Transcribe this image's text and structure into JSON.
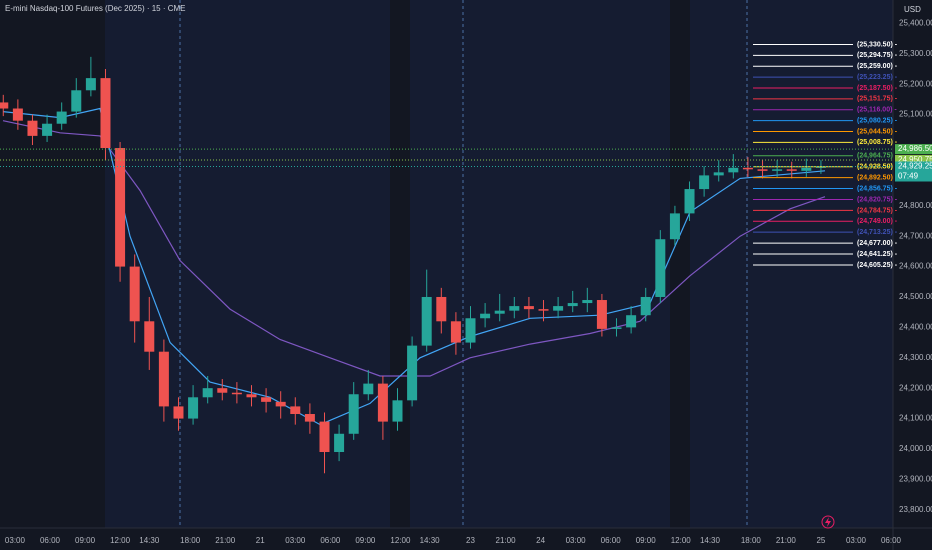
{
  "chart_data": {
    "type": "candlestick",
    "title": "E-mini Nasdaq-100 Futures (Dec 2025) · 15 · CME",
    "currency": "USD",
    "up_color": "#26a69a",
    "down_color": "#ef5350",
    "xlim": [
      1.72,
      78.17
    ],
    "ylim": [
      23740,
      25477
    ],
    "x": [
      2,
      3.25,
      4.5,
      5.75,
      7,
      8.25,
      9.5,
      10.75,
      12,
      13.25,
      14.5,
      15.75,
      17,
      18.25,
      19.5,
      20.75,
      22,
      23.25,
      24.5,
      25.75,
      27,
      28.25,
      29.5,
      30.75,
      32,
      33.25,
      34.5,
      35.75,
      37,
      38.25,
      39.5,
      40.75,
      42,
      43.25,
      44.5,
      45.75,
      47,
      48.25,
      49.5,
      50.75,
      52,
      53.25,
      54.5,
      55.75,
      57,
      58.25,
      59.5,
      60.75,
      62,
      63.25,
      64.5,
      65.75,
      67,
      68.25,
      69.5,
      70.75,
      72
    ],
    "open": [
      25140,
      25120,
      25080,
      25030,
      25070,
      25110,
      25180,
      25220,
      24990,
      24600,
      24420,
      24320,
      24140,
      24100,
      24170,
      24200,
      24185,
      24180,
      24170,
      24155,
      24140,
      24115,
      24090,
      23990,
      24050,
      24180,
      24215,
      24090,
      24160,
      24340,
      24500,
      24420,
      24350,
      24430,
      24445,
      24455,
      24470,
      24460,
      24455,
      24470,
      24480,
      24490,
      24395,
      24400,
      24440,
      24500,
      24690,
      24775,
      24855,
      24900,
      24910,
      24925,
      24920,
      24915,
      24920,
      24915,
      24925
    ],
    "high": [
      25165,
      25150,
      25100,
      25100,
      25140,
      25220,
      25290,
      25250,
      25010,
      24640,
      24500,
      24360,
      24170,
      24210,
      24240,
      24230,
      24220,
      24210,
      24200,
      24190,
      24170,
      24150,
      24120,
      24080,
      24220,
      24260,
      24240,
      24200,
      24370,
      24590,
      24530,
      24450,
      24470,
      24480,
      24510,
      24500,
      24500,
      24490,
      24500,
      24520,
      24530,
      24510,
      24430,
      24470,
      24530,
      24720,
      24800,
      24880,
      24930,
      24950,
      24970,
      24960,
      24950,
      24950,
      24945,
      24955,
      24950
    ],
    "low": [
      25095,
      25050,
      25000,
      25010,
      25050,
      25090,
      25160,
      24950,
      24550,
      24350,
      24260,
      24090,
      24060,
      24080,
      24150,
      24160,
      24150,
      24140,
      24120,
      24100,
      24080,
      24050,
      23920,
      23960,
      24030,
      24160,
      24030,
      24060,
      24140,
      24320,
      24380,
      24310,
      24330,
      24400,
      24420,
      24430,
      24430,
      24420,
      24430,
      24450,
      24450,
      24370,
      24370,
      24380,
      24420,
      24480,
      24670,
      24750,
      24830,
      24880,
      24890,
      24895,
      24890,
      24895,
      24890,
      24895,
      24905
    ],
    "close": [
      25120,
      25080,
      25030,
      25070,
      25110,
      25180,
      25220,
      24990,
      24600,
      24420,
      24320,
      24140,
      24100,
      24170,
      24200,
      24185,
      24180,
      24170,
      24155,
      24140,
      24115,
      24090,
      23990,
      24050,
      24180,
      24215,
      24090,
      24160,
      24340,
      24500,
      24420,
      24350,
      24430,
      24445,
      24455,
      24470,
      24460,
      24455,
      24470,
      24480,
      24490,
      24395,
      24400,
      24440,
      24500,
      24690,
      24775,
      24855,
      24900,
      24910,
      24925,
      24920,
      24915,
      24920,
      24915,
      24925,
      24929.25
    ],
    "lines": [
      {
        "color": "#7e57c2",
        "x": [
          1.98,
          6.86,
          10.28,
          13.71,
          17.13,
          21.41,
          25.69,
          29.97,
          34.25,
          38.54,
          41.96,
          47.1,
          52.23,
          56.5,
          60.8,
          65.08,
          69.36,
          72.35
        ],
        "values": [
          25080,
          25040,
          25030,
          24850,
          24620,
          24460,
          24360,
          24300,
          24240,
          24240,
          24300,
          24345,
          24380,
          24420,
          24570,
          24700,
          24790,
          24830
        ]
      },
      {
        "color": "#42a5f5",
        "x": [
          1.98,
          6.86,
          10.28,
          12.85,
          16.28,
          19.7,
          24.84,
          29.12,
          33.4,
          37.68,
          41.96,
          47.1,
          53.09,
          57.37,
          60.8,
          65.08,
          72.35
        ],
        "values": [
          25110,
          25090,
          25120,
          24700,
          24350,
          24220,
          24170,
          24080,
          24150,
          24300,
          24370,
          24430,
          24440,
          24480,
          24780,
          24890,
          24915
        ]
      }
    ],
    "levels": [
      {
        "value": 25330.5,
        "label": "(25,330.50) -",
        "color": "#ffffff"
      },
      {
        "value": 25294.75,
        "label": "(25,294.75) -",
        "color": "#ffffff"
      },
      {
        "value": 25259,
        "label": "(25,259.00) -",
        "color": "#ffffff"
      },
      {
        "value": 25223.25,
        "label": "(25,223.25) -",
        "color": "#3f51b5"
      },
      {
        "value": 25187.5,
        "label": "(25,187.50) -",
        "color": "#e91e63"
      },
      {
        "value": 25151.75,
        "label": "(25,151.75) -",
        "color": "#f23645"
      },
      {
        "value": 25116,
        "label": "(25,116.00) -",
        "color": "#9c27b0"
      },
      {
        "value": 25080.25,
        "label": "(25,080.25) -",
        "color": "#2196f3"
      },
      {
        "value": 25044.5,
        "label": "(25,044.50) -",
        "color": "#ff9800"
      },
      {
        "value": 25008.75,
        "label": "(25,008.75) -",
        "color": "#ffeb3b"
      },
      {
        "value": 24964.75,
        "label": "(24,964.75) -",
        "color": "#4caf50"
      },
      {
        "value": 24928.5,
        "label": "(24,928.50) -",
        "color": "#ffeb3b"
      },
      {
        "value": 24892.5,
        "label": "(24,892.50) -",
        "color": "#ff9800"
      },
      {
        "value": 24856.75,
        "label": "(24,856.75) -",
        "color": "#2196f3"
      },
      {
        "value": 24820.75,
        "label": "(24,820.75) -",
        "color": "#9c27b0"
      },
      {
        "value": 24784.75,
        "label": "(24,784.75) -",
        "color": "#f23645"
      },
      {
        "value": 24749,
        "label": "(24,749.00) -",
        "color": "#e91e63"
      },
      {
        "value": 24713.25,
        "label": "(24,713.25) -",
        "color": "#3f51b5"
      },
      {
        "value": 24677,
        "label": "(24,677.00) -",
        "color": "#ffffff"
      },
      {
        "value": 24641.25,
        "label": "(24,641.25) -",
        "color": "#ffffff"
      },
      {
        "value": 24605.25,
        "label": "(24,605.25) -",
        "color": "#ffffff"
      }
    ],
    "price_tags": [
      {
        "value": 24986.5,
        "label": "24,986.50",
        "color": "#4caf50"
      },
      {
        "value": 24950.75,
        "label": "24,950.75",
        "color": "#8bc34a"
      },
      {
        "value": 24929.25,
        "label": "24,929.25",
        "color": "#26a69a",
        "sub": "07:49"
      }
    ],
    "yticks": [
      {
        "value": 23800,
        "label": "23,800.00"
      },
      {
        "value": 23900,
        "label": "23,900.00"
      },
      {
        "value": 24000,
        "label": "24,000.00"
      },
      {
        "value": 24100,
        "label": "24,100.00"
      },
      {
        "value": 24200,
        "label": "24,200.00"
      },
      {
        "value": 24300,
        "label": "24,300.00"
      },
      {
        "value": 24400,
        "label": "24,400.00"
      },
      {
        "value": 24500,
        "label": "24,500.00"
      },
      {
        "value": 24600,
        "label": "24,600.00"
      },
      {
        "value": 24700,
        "label": "24,700.00"
      },
      {
        "value": 24800,
        "label": "24,800.00"
      },
      {
        "value": 25100,
        "label": "25,100.00"
      },
      {
        "value": 25200,
        "label": "25,200.00"
      },
      {
        "value": 25300,
        "label": "25,300.00"
      },
      {
        "value": 25400,
        "label": "25,400.00"
      }
    ],
    "xticks": [
      {
        "value": 3,
        "label": "03:00"
      },
      {
        "value": 6,
        "label": "06:00"
      },
      {
        "value": 9,
        "label": "09:00"
      },
      {
        "value": 12,
        "label": "12:00"
      },
      {
        "value": 14.5,
        "label": "14:30"
      },
      {
        "value": 18,
        "label": "18:00"
      },
      {
        "value": 21,
        "label": "21:00"
      },
      {
        "value": 24,
        "label": "21"
      },
      {
        "value": 27,
        "label": "03:00"
      },
      {
        "value": 30,
        "label": "06:00"
      },
      {
        "value": 33,
        "label": "09:00"
      },
      {
        "value": 36,
        "label": "12:00"
      },
      {
        "value": 38.5,
        "label": "14:30"
      },
      {
        "value": 42,
        "label": "23"
      },
      {
        "value": 45,
        "label": "21:00"
      },
      {
        "value": 48,
        "label": "24"
      },
      {
        "value": 51,
        "label": "03:00"
      },
      {
        "value": 54,
        "label": "06:00"
      },
      {
        "value": 57,
        "label": "09:00"
      },
      {
        "value": 60,
        "label": "12:00"
      },
      {
        "value": 62.5,
        "label": "14:30"
      },
      {
        "value": 66,
        "label": "18:00"
      },
      {
        "value": 69,
        "label": "21:00"
      },
      {
        "value": 72,
        "label": "25"
      },
      {
        "value": 75,
        "label": "03:00"
      },
      {
        "value": 78,
        "label": "06:00"
      }
    ]
  }
}
